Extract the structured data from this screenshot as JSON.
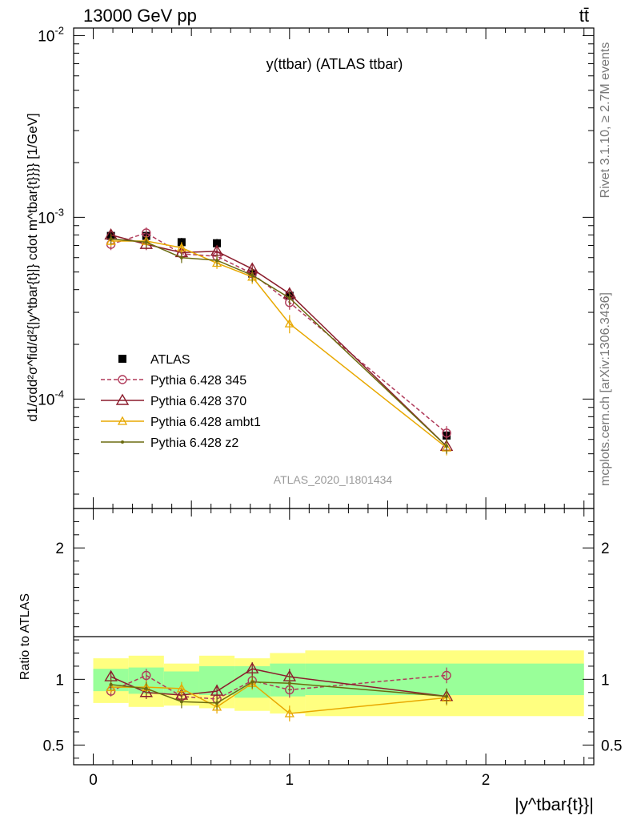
{
  "header": {
    "energy_label": "13000 GeV pp",
    "process_label": "tt̄"
  },
  "side_labels": {
    "rivet": "Rivet 3.1.10, ≥ 2.7M events",
    "mcplots": "mcplots.cern.ch [arXiv:1306.3436]"
  },
  "chart_data": [
    {
      "type": "line",
      "panel": "main",
      "title": "y(ttbar) (ATLAS ttbar)",
      "analysis_label": "ATLAS_2020_I1801434",
      "ylabel": "d1/σdd²σ^fid/d²{|y^tbar{t}|} cdot m^tbar{t}}}} [1/GeV]",
      "y_scale": "log",
      "xlim": [
        -0.1,
        2.55
      ],
      "ylim": [
        2.5e-05,
        0.011
      ],
      "y_tick_labels": [
        "10^{-4}",
        "10^{-3}",
        "10^{-2}"
      ],
      "legend_position": "bottom-left",
      "x": [
        0.09,
        0.27,
        0.45,
        0.63,
        0.81,
        1.0,
        1.8
      ],
      "series": [
        {
          "name": "ATLAS",
          "style": "marker",
          "marker": "square",
          "color": "#000000",
          "values": [
            0.00079,
            0.00079,
            0.00073,
            0.00072,
            0.00049,
            0.00037,
            6.3e-05
          ],
          "errors": [
            5e-05,
            5e-05,
            4e-05,
            4e-05,
            3e-05,
            2e-05,
            4e-06
          ]
        },
        {
          "name": "Pythia 6.428 345",
          "style": "dashed",
          "marker": "circle",
          "color": "#b03a5a",
          "values": [
            0.00071,
            0.00082,
            0.00063,
            0.00061,
            0.00049,
            0.00034,
            6.5e-05
          ],
          "errors": [
            5e-05,
            6e-05,
            5e-05,
            5e-05,
            4e-05,
            3e-05,
            6e-06
          ]
        },
        {
          "name": "Pythia 6.428 370",
          "style": "solid",
          "marker": "triangle",
          "color": "#8b1c2c",
          "values": [
            0.0008,
            0.00071,
            0.00064,
            0.00065,
            0.00052,
            0.00038,
            5.5e-05
          ],
          "errors": [
            5e-05,
            5e-05,
            5e-05,
            5e-05,
            4e-05,
            3e-05,
            5e-06
          ]
        },
        {
          "name": "Pythia 6.428 ambt1",
          "style": "solid",
          "marker": "triangle-small",
          "color": "#e8a800",
          "values": [
            0.00074,
            0.00074,
            0.00068,
            0.00056,
            0.00047,
            0.00026,
            5.4e-05
          ],
          "errors": [
            5e-05,
            5e-05,
            5e-05,
            4e-05,
            4e-05,
            3e-05,
            5e-06
          ]
        },
        {
          "name": "Pythia 6.428 z2",
          "style": "solid",
          "marker": "dot",
          "color": "#6b6b10",
          "values": [
            0.00076,
            0.00073,
            0.0006,
            0.00058,
            0.00048,
            0.00036,
            5.5e-05
          ],
          "errors": [
            5e-05,
            5e-05,
            4e-05,
            4e-05,
            4e-05,
            3e-05,
            5e-06
          ]
        }
      ]
    },
    {
      "type": "line",
      "panel": "ratio",
      "ylabel": "Ratio to ATLAS",
      "xlabel": "|y^tbar{t}}|",
      "xlim": [
        -0.1,
        2.55
      ],
      "ylim": [
        0.35,
        2.3
      ],
      "x_ticks": [
        0,
        1,
        2
      ],
      "y_ticks": [
        0.5,
        1,
        2
      ],
      "x": [
        0.09,
        0.27,
        0.45,
        0.63,
        0.81,
        1.0,
        1.8
      ],
      "bands": {
        "edges": [
          0,
          0.18,
          0.36,
          0.54,
          0.72,
          0.9,
          1.08,
          2.5
        ],
        "inner": [
          [
            0.91,
            1.08
          ],
          [
            0.89,
            1.09
          ],
          [
            0.89,
            1.06
          ],
          [
            0.88,
            1.1
          ],
          [
            0.86,
            1.1
          ],
          [
            0.87,
            1.12
          ],
          [
            0.88,
            1.12
          ]
        ],
        "outer": [
          [
            0.82,
            1.16
          ],
          [
            0.79,
            1.18
          ],
          [
            0.8,
            1.12
          ],
          [
            0.78,
            1.18
          ],
          [
            0.76,
            1.16
          ],
          [
            0.74,
            1.2
          ],
          [
            0.72,
            1.22
          ]
        ]
      },
      "series": [
        {
          "name": "Pythia 6.428 345",
          "values": [
            0.91,
            1.03,
            0.87,
            0.85,
            0.99,
            0.92,
            1.03
          ],
          "errors": [
            0.04,
            0.05,
            0.05,
            0.05,
            0.05,
            0.06,
            0.06
          ]
        },
        {
          "name": "Pythia 6.428 370",
          "values": [
            1.02,
            0.9,
            0.88,
            0.91,
            1.08,
            1.02,
            0.87
          ],
          "errors": [
            0.04,
            0.05,
            0.05,
            0.05,
            0.05,
            0.06,
            0.06
          ]
        },
        {
          "name": "Pythia 6.428 ambt1",
          "values": [
            0.94,
            0.94,
            0.93,
            0.79,
            0.97,
            0.74,
            0.86
          ],
          "errors": [
            0.04,
            0.05,
            0.05,
            0.05,
            0.05,
            0.06,
            0.06
          ]
        },
        {
          "name": "Pythia 6.428 z2",
          "values": [
            0.96,
            0.93,
            0.83,
            0.82,
            0.98,
            0.97,
            0.87
          ],
          "errors": [
            0.04,
            0.05,
            0.05,
            0.05,
            0.05,
            0.06,
            0.06
          ]
        }
      ]
    }
  ]
}
